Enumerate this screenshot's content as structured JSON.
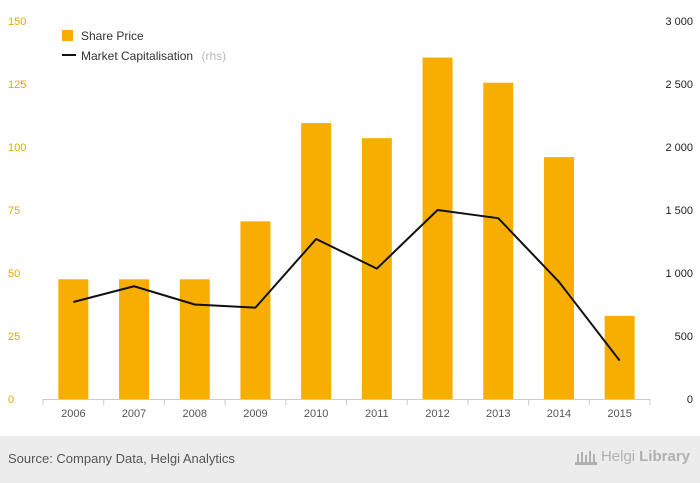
{
  "chart_data": {
    "type": "bar",
    "categories": [
      "2006",
      "2007",
      "2008",
      "2009",
      "2010",
      "2011",
      "2012",
      "2013",
      "2014",
      "2015"
    ],
    "series": [
      {
        "name": "Share Price",
        "type": "bar",
        "axis": "left",
        "color": "#f7ae00",
        "values": [
          47.5,
          47.5,
          47.5,
          70.5,
          109.5,
          103.5,
          135.5,
          125.5,
          96,
          33
        ]
      },
      {
        "name": "Market Capitalisation",
        "name_suffix": "(rhs)",
        "type": "line",
        "axis": "right",
        "color": "#111111",
        "values": [
          770,
          895,
          750,
          725,
          1270,
          1035,
          1500,
          1435,
          930,
          305
        ]
      }
    ],
    "y_left": {
      "ticks": [
        "0",
        "25",
        "50",
        "75",
        "100",
        "125",
        "150"
      ],
      "ylim": [
        0,
        150
      ]
    },
    "y_right": {
      "ticks": [
        "0",
        "500",
        "1 000",
        "1 500",
        "2 000",
        "2 500",
        "3 000"
      ],
      "ylim": [
        0,
        3000
      ]
    },
    "legend_position": "top-left",
    "grid": false
  },
  "footer": {
    "source": "Source: Company Data, Helgi Analytics",
    "logo_part1": "Helgi",
    "logo_part2": "Library"
  }
}
